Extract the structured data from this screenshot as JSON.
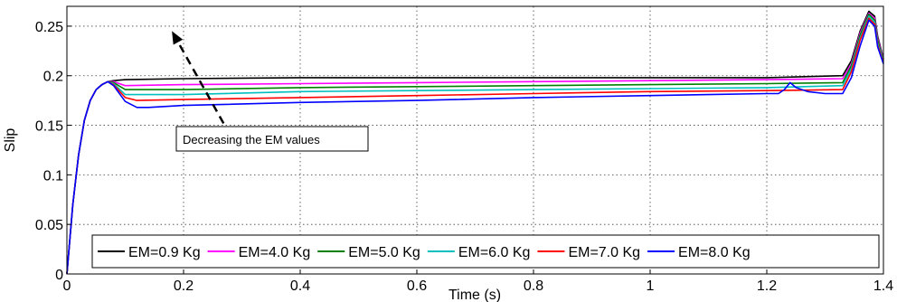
{
  "chart_data": {
    "type": "line",
    "title": "",
    "xlabel": "Time (s)",
    "ylabel": "Slip",
    "xlim": [
      0,
      1.4
    ],
    "ylim": [
      0,
      0.27
    ],
    "x_ticks": [
      0,
      0.2,
      0.4,
      0.6,
      0.8,
      1,
      1.2,
      1.4
    ],
    "x_tick_labels": [
      "0",
      "0.2",
      "0.4",
      "0.6",
      "0.8",
      "1",
      "1.2",
      "1.4"
    ],
    "y_ticks": [
      0,
      0.05,
      0.1,
      0.15,
      0.2,
      0.25
    ],
    "y_tick_labels": [
      "0",
      "0.05",
      "0.1",
      "0.15",
      "0.2",
      "0.25"
    ],
    "grid": true,
    "legend_position": "bottom-right",
    "annotation": {
      "text": "Decreasing the EM values",
      "arrow_from": [
        0.28,
        0.14
      ],
      "arrow_to": [
        0.18,
        0.245
      ]
    },
    "series": [
      {
        "name": "EM=0.9 Kg",
        "color": "#000000",
        "x": [
          0,
          0.01,
          0.02,
          0.03,
          0.04,
          0.05,
          0.06,
          0.07,
          0.08,
          0.1,
          0.2,
          0.4,
          0.6,
          0.8,
          1.0,
          1.2,
          1.33,
          1.345,
          1.36,
          1.375,
          1.385,
          1.39,
          1.4
        ],
        "y": [
          0,
          0.07,
          0.12,
          0.155,
          0.175,
          0.186,
          0.191,
          0.194,
          0.195,
          0.196,
          0.197,
          0.198,
          0.198,
          0.198,
          0.198,
          0.198,
          0.2,
          0.215,
          0.245,
          0.265,
          0.26,
          0.24,
          0.217
        ]
      },
      {
        "name": "EM=4.0 Kg",
        "color": "#ff00ff",
        "x": [
          0,
          0.01,
          0.02,
          0.03,
          0.04,
          0.05,
          0.06,
          0.07,
          0.08,
          0.1,
          0.2,
          0.4,
          0.6,
          0.8,
          1.0,
          1.2,
          1.33,
          1.345,
          1.36,
          1.375,
          1.385,
          1.39,
          1.4
        ],
        "y": [
          0,
          0.07,
          0.12,
          0.155,
          0.175,
          0.186,
          0.191,
          0.194,
          0.194,
          0.19,
          0.191,
          0.192,
          0.193,
          0.194,
          0.195,
          0.196,
          0.197,
          0.212,
          0.243,
          0.263,
          0.258,
          0.238,
          0.216
        ]
      },
      {
        "name": "EM=5.0 Kg",
        "color": "#008000",
        "x": [
          0,
          0.01,
          0.02,
          0.03,
          0.04,
          0.05,
          0.06,
          0.07,
          0.08,
          0.1,
          0.2,
          0.4,
          0.6,
          0.8,
          1.0,
          1.2,
          1.33,
          1.345,
          1.36,
          1.375,
          1.385,
          1.39,
          1.4
        ],
        "y": [
          0,
          0.07,
          0.12,
          0.155,
          0.175,
          0.186,
          0.191,
          0.194,
          0.193,
          0.186,
          0.186,
          0.188,
          0.189,
          0.19,
          0.191,
          0.192,
          0.193,
          0.21,
          0.241,
          0.262,
          0.256,
          0.236,
          0.215
        ]
      },
      {
        "name": "EM=6.0 Kg",
        "color": "#00bfbf",
        "x": [
          0,
          0.01,
          0.02,
          0.03,
          0.04,
          0.05,
          0.06,
          0.07,
          0.08,
          0.1,
          0.2,
          0.4,
          0.6,
          0.8,
          1.0,
          1.2,
          1.33,
          1.345,
          1.36,
          1.375,
          1.385,
          1.39,
          1.4
        ],
        "y": [
          0,
          0.07,
          0.12,
          0.155,
          0.175,
          0.186,
          0.191,
          0.194,
          0.192,
          0.181,
          0.181,
          0.184,
          0.185,
          0.186,
          0.187,
          0.188,
          0.19,
          0.207,
          0.238,
          0.26,
          0.254,
          0.233,
          0.214
        ]
      },
      {
        "name": "EM=7.0 Kg",
        "color": "#ff0000",
        "x": [
          0,
          0.01,
          0.02,
          0.03,
          0.04,
          0.05,
          0.06,
          0.07,
          0.08,
          0.1,
          0.12,
          0.2,
          0.4,
          0.6,
          0.8,
          1.0,
          1.2,
          1.33,
          1.345,
          1.36,
          1.375,
          1.385,
          1.39,
          1.4
        ],
        "y": [
          0,
          0.07,
          0.12,
          0.155,
          0.175,
          0.186,
          0.191,
          0.194,
          0.191,
          0.178,
          0.175,
          0.176,
          0.178,
          0.18,
          0.182,
          0.184,
          0.185,
          0.186,
          0.204,
          0.236,
          0.258,
          0.252,
          0.231,
          0.213
        ]
      },
      {
        "name": "EM=8.0 Kg",
        "color": "#0000ff",
        "x": [
          0,
          0.01,
          0.02,
          0.03,
          0.04,
          0.05,
          0.06,
          0.07,
          0.08,
          0.1,
          0.12,
          0.14,
          0.2,
          0.4,
          0.6,
          0.8,
          1.0,
          1.1,
          1.2,
          1.22,
          1.23,
          1.24,
          1.25,
          1.27,
          1.3,
          1.33,
          1.345,
          1.36,
          1.375,
          1.385,
          1.39,
          1.4
        ],
        "y": [
          0,
          0.07,
          0.12,
          0.155,
          0.175,
          0.186,
          0.191,
          0.194,
          0.19,
          0.174,
          0.168,
          0.168,
          0.17,
          0.173,
          0.175,
          0.178,
          0.18,
          0.181,
          0.182,
          0.182,
          0.186,
          0.193,
          0.188,
          0.184,
          0.182,
          0.182,
          0.198,
          0.23,
          0.256,
          0.25,
          0.229,
          0.212
        ]
      }
    ]
  }
}
